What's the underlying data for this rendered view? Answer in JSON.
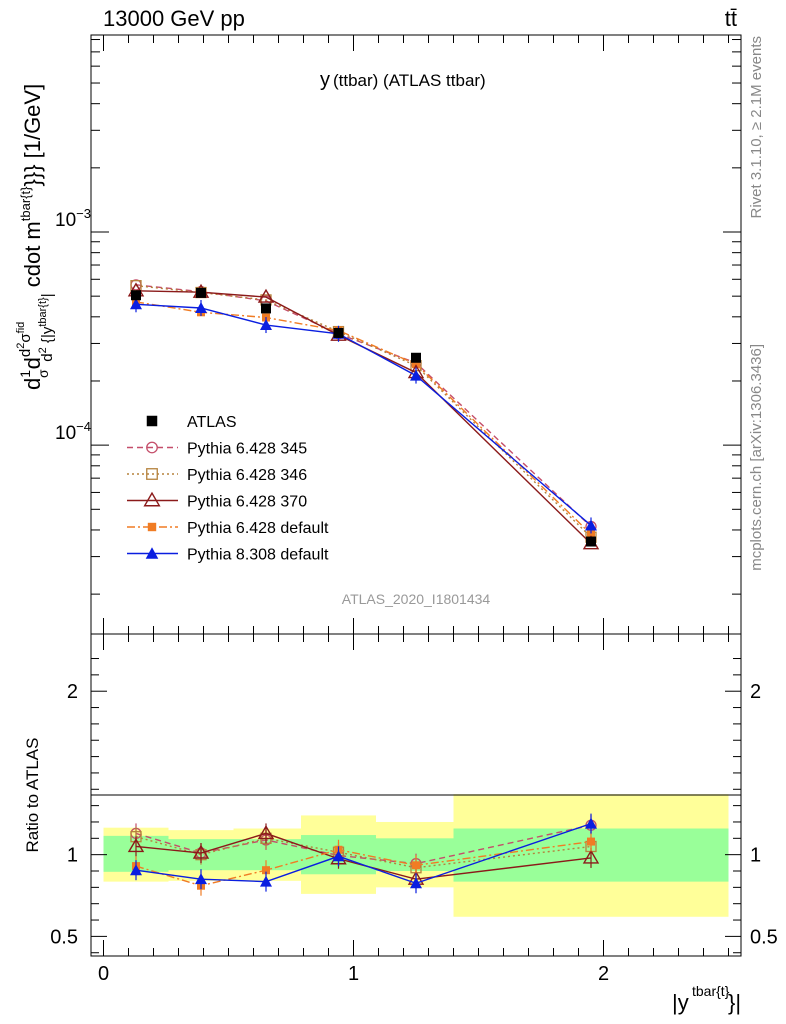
{
  "header": {
    "left": "13000 GeV pp",
    "right": "tt̄"
  },
  "side": {
    "rivet": "Rivet 3.1.10, ≥ 2.1M events",
    "mcplots": "mcplots.cern.ch [arXiv:1306.3436]"
  },
  "chart_data": [
    {
      "type": "line",
      "title": "y(ttbar) (ATLAS ttbar)",
      "title_main": "y",
      "title_sub": "(ttbar) (ATLAS ttbar)",
      "ylabel": "d²σ/d|y| ... [1/GeV]",
      "ylabel_unit": "[1/GeV]",
      "yscale": "log",
      "ylim": [
        1.3e-05,
        0.0084
      ],
      "xlim": [
        -0.05,
        2.55
      ],
      "ytick_labels": [
        "10^{-4}",
        "10^{-3}"
      ],
      "watermark": "ATLAS_2020_I1801434",
      "legend_position": "left-middle",
      "x": [
        0.13,
        0.39,
        0.65,
        0.94,
        1.25,
        1.95
      ],
      "series": [
        {
          "name": "ATLAS",
          "color": "#000000",
          "marker": "filled-square",
          "line": "none",
          "values": [
            0.000505,
            0.000518,
            0.000438,
            0.000336,
            0.000257,
            3.53e-05
          ]
        },
        {
          "name": "Pythia 6.428 345",
          "color": "#c44e6a",
          "marker": "open-circle",
          "line": "dashed",
          "values": [
            0.000565,
            0.000525,
            0.000475,
            0.000333,
            0.000243,
            4.15e-05
          ]
        },
        {
          "name": "Pythia 6.428 346",
          "color": "#b5823c",
          "marker": "open-square",
          "line": "dotted",
          "values": [
            0.00056,
            0.00052,
            0.00048,
            0.000341,
            0.000236,
            3.7e-05
          ]
        },
        {
          "name": "Pythia 6.428 370",
          "color": "#8b1a1a",
          "marker": "open-triangle",
          "line": "solid",
          "values": [
            0.00053,
            0.000522,
            0.000495,
            0.000328,
            0.000219,
            3.45e-05
          ]
        },
        {
          "name": "Pythia 6.428 default",
          "color": "#f07c24",
          "marker": "filled-square-small",
          "line": "dashdot",
          "values": [
            0.00047,
            0.00042,
            0.000397,
            0.000345,
            0.00024,
            3.82e-05
          ]
        },
        {
          "name": "Pythia 8.308 default",
          "color": "#0a1ee0",
          "marker": "filled-triangle",
          "line": "solid",
          "values": [
            0.000458,
            0.00044,
            0.000366,
            0.000333,
            0.000212,
            4.2e-05
          ]
        }
      ]
    },
    {
      "type": "line",
      "ylabel": "Ratio to ATLAS",
      "ylim": [
        0.38,
        2.35
      ],
      "xlim": [
        -0.05,
        2.55
      ],
      "yticks": [
        0.5,
        1,
        2
      ],
      "ytick_labels": [
        "0.5",
        "1",
        "2"
      ],
      "xticks": [
        0,
        1,
        2
      ],
      "xtick_labels": [
        "0",
        "1",
        "2"
      ],
      "xlabel": "|y^{tbar{t}}|",
      "xlabel_main": "|y",
      "xlabel_sup": "tbar{t}",
      "xlabel_end": "}|",
      "bands": [
        {
          "x0": 0.0,
          "x1": 0.26,
          "green": [
            0.895,
            1.115
          ],
          "yellow": [
            0.835,
            1.165
          ]
        },
        {
          "x0": 0.26,
          "x1": 0.52,
          "green": [
            0.905,
            1.095
          ],
          "yellow": [
            0.84,
            1.15
          ]
        },
        {
          "x0": 0.52,
          "x1": 0.79,
          "green": [
            0.905,
            1.095
          ],
          "yellow": [
            0.84,
            1.16
          ]
        },
        {
          "x0": 0.79,
          "x1": 1.09,
          "green": [
            0.88,
            1.12
          ],
          "yellow": [
            0.76,
            1.24
          ]
        },
        {
          "x0": 1.09,
          "x1": 1.4,
          "green": [
            0.9,
            1.1
          ],
          "yellow": [
            0.8,
            1.2
          ]
        },
        {
          "x0": 1.4,
          "x1": 2.5,
          "green": [
            0.835,
            1.16
          ],
          "yellow": [
            0.62,
            1.37
          ]
        }
      ],
      "x": [
        0.13,
        0.39,
        0.65,
        0.94,
        1.25,
        1.95
      ],
      "series": [
        {
          "name": "Pythia 6.428 345",
          "values": [
            1.13,
            1.01,
            1.09,
            0.995,
            0.945,
            1.18
          ]
        },
        {
          "name": "Pythia 6.428 346",
          "values": [
            1.11,
            1.0,
            1.1,
            1.015,
            0.92,
            1.05
          ]
        },
        {
          "name": "Pythia 6.428 370",
          "values": [
            1.05,
            1.01,
            1.13,
            0.975,
            0.85,
            0.98
          ]
        },
        {
          "name": "Pythia 6.428 default",
          "values": [
            0.93,
            0.81,
            0.905,
            1.03,
            0.935,
            1.08
          ]
        },
        {
          "name": "Pythia 8.308 default",
          "values": [
            0.905,
            0.85,
            0.835,
            0.99,
            0.825,
            1.19
          ]
        }
      ]
    }
  ]
}
